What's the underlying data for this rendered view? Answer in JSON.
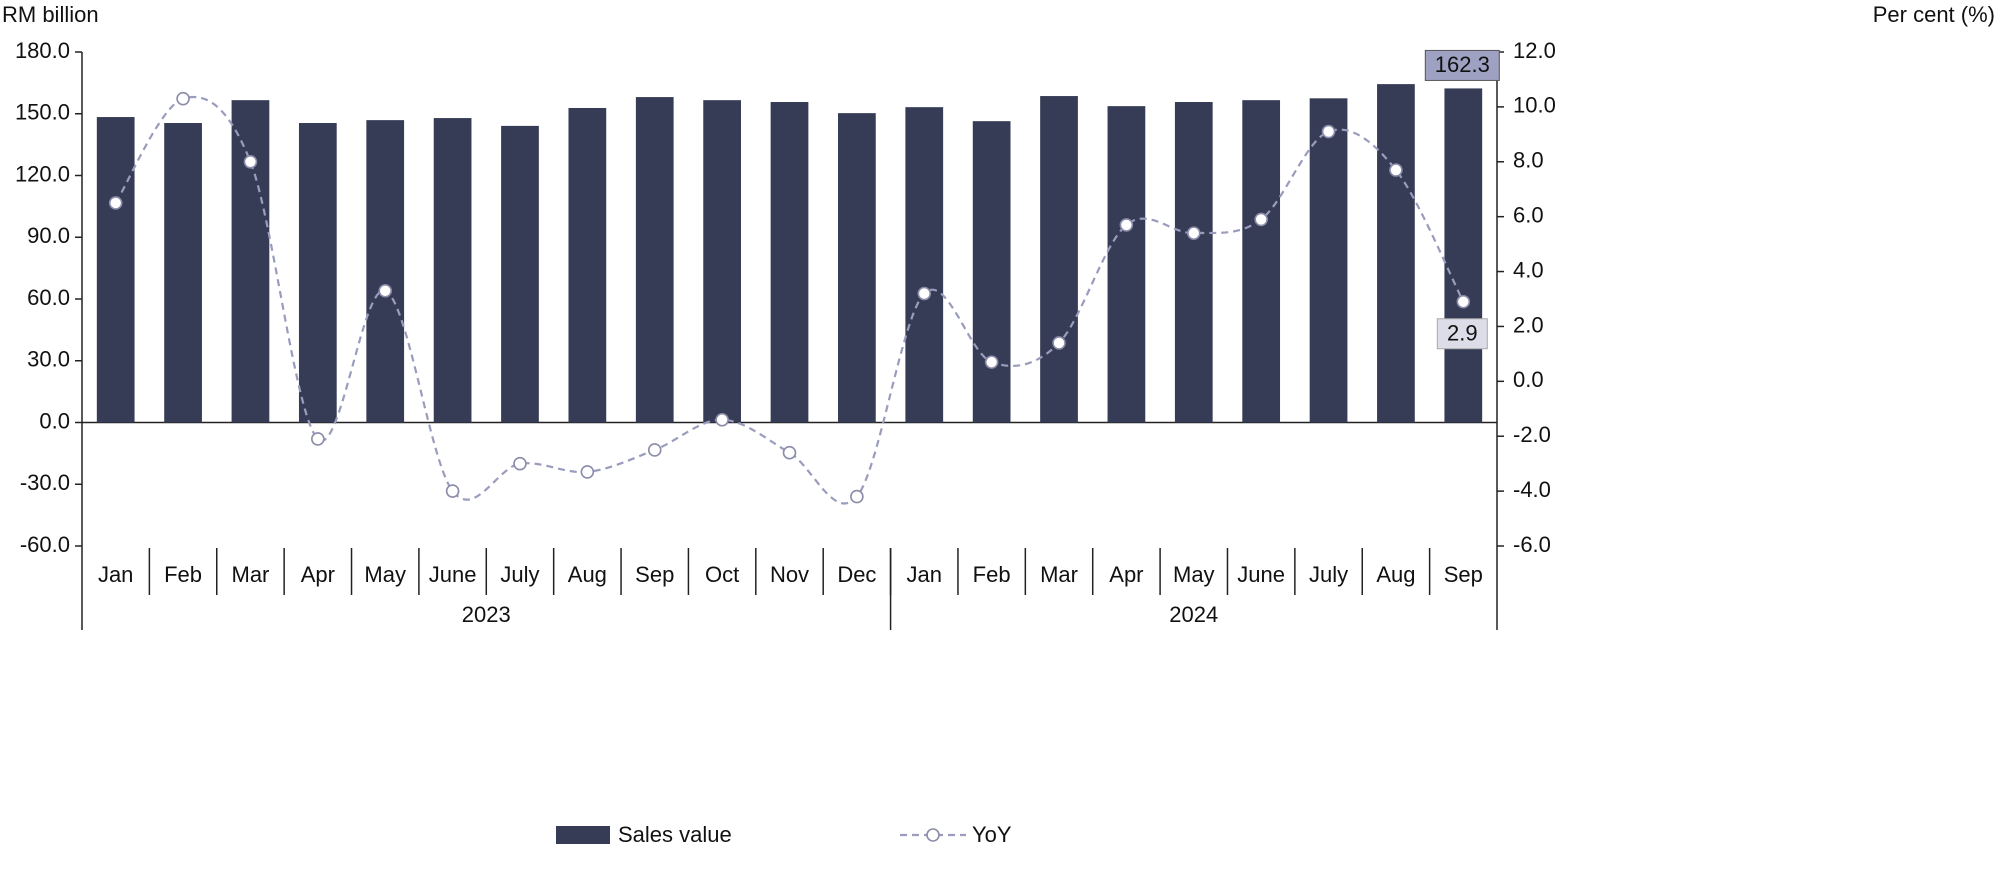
{
  "chart_data": {
    "type": "bar-line",
    "y_axis_label": "RM billion",
    "y2_axis_label": "Per cent (%)",
    "categories": [
      "Jan",
      "Feb",
      "Mar",
      "Apr",
      "May",
      "June",
      "July",
      "Aug",
      "Sep",
      "Oct",
      "Nov",
      "Dec",
      "Jan",
      "Feb",
      "Mar",
      "Apr",
      "May",
      "June",
      "July",
      "Aug",
      "Sep"
    ],
    "groups": [
      {
        "label": "2023",
        "count": 12
      },
      {
        "label": "2024",
        "count": 9
      }
    ],
    "series": [
      {
        "name": "Sales value",
        "type": "bar",
        "color": "#363c55",
        "values": [
          148.4,
          145.5,
          156.6,
          145.5,
          146.9,
          147.9,
          144.1,
          152.8,
          158.1,
          156.6,
          155.7,
          150.3,
          153.2,
          146.4,
          158.6,
          153.7,
          155.7,
          156.6,
          157.5,
          164.4,
          162.3
        ]
      },
      {
        "name": "YoY",
        "type": "line",
        "axis": "y2",
        "color": "#9a9cbd",
        "dashed": true,
        "values": [
          6.5,
          10.3,
          8.0,
          -2.1,
          3.3,
          -4.0,
          -3.0,
          -3.3,
          -2.5,
          -1.4,
          -2.6,
          -4.2,
          3.2,
          0.7,
          1.4,
          5.7,
          5.4,
          5.9,
          9.1,
          7.7,
          2.9
        ]
      }
    ],
    "label_last_point": true,
    "ylim": [
      -60,
      180
    ],
    "yticks": [
      {
        "value": -60,
        "label": "-60.0"
      },
      {
        "value": -30,
        "label": "-30.0"
      },
      {
        "value": 0,
        "label": "0.0"
      },
      {
        "value": 30,
        "label": "30.0"
      },
      {
        "value": 60,
        "label": "60.0"
      },
      {
        "value": 90,
        "label": "90.0"
      },
      {
        "value": 120,
        "label": "120.0"
      },
      {
        "value": 150,
        "label": "150.0"
      },
      {
        "value": 180,
        "label": "180.0"
      }
    ],
    "y2lim": [
      -6,
      12
    ],
    "y2ticks": [
      {
        "value": -6,
        "label": "-6.0"
      },
      {
        "value": -4,
        "label": "-4.0"
      },
      {
        "value": -2,
        "label": "-2.0"
      },
      {
        "value": 0,
        "label": "0.0"
      },
      {
        "value": 2,
        "label": "2.0"
      },
      {
        "value": 4,
        "label": "4.0"
      },
      {
        "value": 6,
        "label": "6.0"
      },
      {
        "value": 8,
        "label": "8.0"
      },
      {
        "value": 10,
        "label": "10.0"
      },
      {
        "value": 12,
        "label": "12.0"
      }
    ]
  }
}
